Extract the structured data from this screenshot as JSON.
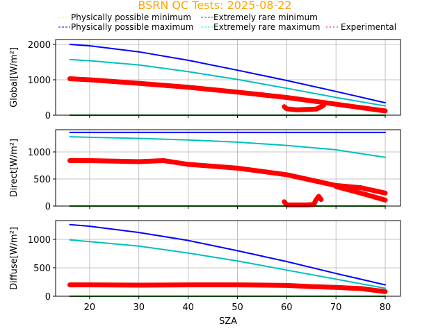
{
  "chart_data": {
    "type": "line",
    "title": "BSRN QC Tests: 2025-08-22",
    "title_color": "#ffa500",
    "xlabel": "SZA",
    "xlim": [
      13.1,
      83.1
    ],
    "xticks": [
      20,
      30,
      40,
      50,
      60,
      70,
      80
    ],
    "grid": true,
    "legend": {
      "placement": "top",
      "entries": [
        {
          "label": "Physically possible minimum",
          "color": "#ffff00",
          "style": "dashed"
        },
        {
          "label": "Extremely rare minimum",
          "color": "#008000",
          "style": "dashed"
        },
        {
          "label": "Physically possible maximum",
          "color": "#0000ff",
          "style": "dashed"
        },
        {
          "label": "Extremely rare maximum",
          "color": "#00ffff",
          "style": "dashed"
        },
        {
          "label": "Experimental",
          "color": "#ff0000",
          "style": "dotted"
        }
      ]
    },
    "panels": [
      {
        "name": "global",
        "ylabel": "Global[W/m²]",
        "ylim": [
          0,
          2137
        ],
        "yticks": [
          0,
          1000,
          2000
        ],
        "series": [
          {
            "name": "Physically possible maximum",
            "color": "#0000ff",
            "x": [
              16,
              20,
              30,
              40,
              50,
              60,
              70,
              80
            ],
            "y": [
              2000,
              1960,
              1790,
              1550,
              1270,
              980,
              670,
              350
            ]
          },
          {
            "name": "Extremely rare maximum",
            "color": "#00bfbf",
            "x": [
              16,
              20,
              30,
              40,
              50,
              60,
              70,
              80
            ],
            "y": [
              1570,
              1540,
              1420,
              1230,
              1010,
              760,
              500,
              260
            ]
          },
          {
            "name": "Extremely rare minimum",
            "color": "#008000",
            "x": [
              16,
              80
            ],
            "y": [
              0,
              0
            ]
          },
          {
            "name": "Experimental",
            "color": "#ff0000",
            "x": [
              16,
              20,
              30,
              40,
              50,
              60,
              70,
              80
            ],
            "y": [
              1030,
              1000,
              900,
              790,
              650,
              500,
              310,
              120
            ]
          },
          {
            "name": "Experimental (secondary)",
            "color": "#ff0000",
            "x": [
              59.5,
              60,
              62,
              64,
              66,
              67,
              67.5
            ],
            "y": [
              240,
              180,
              150,
              160,
              170,
              240,
              280
            ]
          }
        ]
      },
      {
        "name": "direct",
        "ylabel": "Direct[W/m²]",
        "ylim": [
          0,
          1410
        ],
        "yticks": [
          0,
          500,
          1000
        ],
        "series": [
          {
            "name": "Physically possible maximum",
            "color": "#0000ff",
            "x": [
              16,
              80
            ],
            "y": [
              1360,
              1360
            ]
          },
          {
            "name": "Extremely rare maximum",
            "color": "#00bfbf",
            "x": [
              16,
              20,
              30,
              40,
              50,
              60,
              70,
              80
            ],
            "y": [
              1280,
              1270,
              1250,
              1220,
              1180,
              1120,
              1040,
              900
            ]
          },
          {
            "name": "Extremely rare minimum",
            "color": "#008000",
            "x": [
              16,
              80
            ],
            "y": [
              0,
              0
            ]
          },
          {
            "name": "Experimental",
            "color": "#ff0000",
            "x": [
              16,
              20,
              30,
              35,
              40,
              50,
              60,
              70,
              75,
              80
            ],
            "y": [
              840,
              840,
              820,
              840,
              770,
              700,
              580,
              380,
              340,
              240
            ]
          },
          {
            "name": "Experimental (lower branch)",
            "color": "#ff0000",
            "x": [
              70,
              75,
              80
            ],
            "y": [
              360,
              240,
              110
            ]
          },
          {
            "name": "Experimental (secondary)",
            "color": "#ff0000",
            "x": [
              59.5,
              60,
              62,
              64,
              65.5,
              66,
              66.5,
              67
            ],
            "y": [
              80,
              20,
              20,
              20,
              30,
              120,
              180,
              120
            ]
          }
        ]
      },
      {
        "name": "diffuse",
        "ylabel": "Diffuse[W/m²]",
        "ylim": [
          0,
          1329
        ],
        "yticks": [
          0,
          500,
          1000
        ],
        "series": [
          {
            "name": "Physically possible maximum",
            "color": "#0000ff",
            "x": [
              16,
              20,
              30,
              40,
              50,
              60,
              70,
              80
            ],
            "y": [
              1260,
              1230,
              1120,
              980,
              800,
              610,
              400,
              200
            ]
          },
          {
            "name": "Extremely rare maximum",
            "color": "#00bfbf",
            "x": [
              16,
              20,
              30,
              40,
              50,
              60,
              70,
              80
            ],
            "y": [
              990,
              960,
              880,
              760,
              620,
              460,
              300,
              140
            ]
          },
          {
            "name": "Extremely rare minimum",
            "color": "#008000",
            "x": [
              16,
              80
            ],
            "y": [
              0,
              0
            ]
          },
          {
            "name": "Experimental",
            "color": "#ff0000",
            "x": [
              16,
              20,
              30,
              40,
              50,
              60,
              65,
              70,
              75,
              80
            ],
            "y": [
              200,
              200,
              195,
              200,
              200,
              190,
              170,
              155,
              135,
              80
            ]
          }
        ]
      }
    ]
  }
}
